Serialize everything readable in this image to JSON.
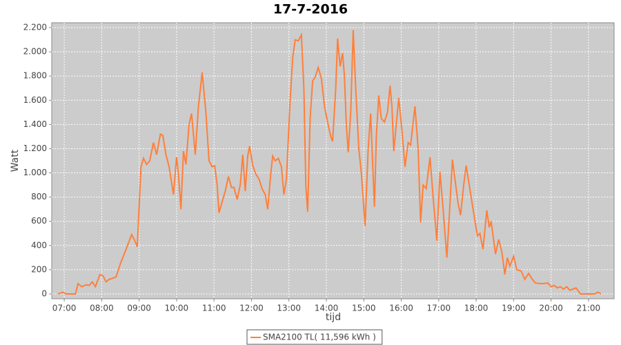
{
  "chart_data": {
    "type": "line",
    "title": "17-7-2016",
    "x_label": "tijd",
    "y_label": "Watt",
    "x": [
      "06:50",
      "06:58",
      "07:03",
      "07:18",
      "07:22",
      "07:28",
      "07:35",
      "07:40",
      "07:45",
      "07:50",
      "07:57",
      "08:02",
      "08:07",
      "08:12",
      "08:18",
      "08:23",
      "08:30",
      "08:40",
      "08:48",
      "08:53",
      "08:57",
      "09:03",
      "09:07",
      "09:12",
      "09:17",
      "09:23",
      "09:28",
      "09:34",
      "09:38",
      "09:43",
      "09:48",
      "09:55",
      "10:00",
      "10:03",
      "10:07",
      "10:11",
      "10:15",
      "10:20",
      "10:24",
      "10:30",
      "10:35",
      "10:41",
      "10:47",
      "10:52",
      "10:57",
      "11:01",
      "11:05",
      "11:08",
      "11:13",
      "11:18",
      "11:23",
      "11:28",
      "11:32",
      "11:37",
      "11:42",
      "11:46",
      "11:50",
      "11:54",
      "11:57",
      "12:02",
      "12:07",
      "12:12",
      "12:17",
      "12:22",
      "12:26",
      "12:31",
      "12:34",
      "12:38",
      "12:43",
      "12:48",
      "12:52",
      "12:56",
      "13:02",
      "13:06",
      "13:10",
      "13:15",
      "13:20",
      "13:24",
      "13:27",
      "13:30",
      "13:34",
      "13:38",
      "13:42",
      "13:47",
      "13:52",
      "13:57",
      "14:02",
      "14:07",
      "14:10",
      "14:15",
      "14:18",
      "14:22",
      "14:26",
      "14:29",
      "14:32",
      "14:35",
      "14:39",
      "14:43",
      "14:47",
      "14:52",
      "14:56",
      "15:02",
      "15:07",
      "15:11",
      "15:14",
      "15:17",
      "15:20",
      "15:24",
      "15:28",
      "15:33",
      "15:38",
      "15:42",
      "15:45",
      "15:48",
      "15:52",
      "15:56",
      "16:01",
      "16:06",
      "16:11",
      "16:15",
      "16:22",
      "16:27",
      "16:31",
      "16:35",
      "16:40",
      "16:46",
      "16:51",
      "16:57",
      "17:02",
      "17:07",
      "17:13",
      "17:17",
      "17:22",
      "17:26",
      "17:31",
      "17:35",
      "17:40",
      "17:44",
      "17:49",
      "17:55",
      "18:02",
      "18:06",
      "18:11",
      "18:17",
      "18:21",
      "18:24",
      "18:31",
      "18:36",
      "18:41",
      "18:46",
      "18:50",
      "18:54",
      "19:00",
      "19:05",
      "19:12",
      "19:18",
      "19:24",
      "19:30",
      "19:35",
      "19:45",
      "19:55",
      "20:00",
      "20:05",
      "20:10",
      "20:15",
      "20:20",
      "20:25",
      "20:30",
      "20:40",
      "20:47",
      "21:10",
      "21:15",
      "21:20"
    ],
    "series": [
      {
        "name": "SMA2100 TL( 11,596 kWh )",
        "color": "#ff7f3a",
        "values": [
          0,
          15,
          0,
          0,
          85,
          60,
          75,
          70,
          100,
          60,
          160,
          150,
          100,
          120,
          130,
          140,
          250,
          380,
          490,
          440,
          390,
          1050,
          1120,
          1070,
          1100,
          1250,
          1150,
          1320,
          1310,
          1150,
          1050,
          820,
          1130,
          990,
          700,
          1180,
          1070,
          1400,
          1490,
          1150,
          1550,
          1830,
          1500,
          1100,
          1050,
          1060,
          900,
          670,
          760,
          850,
          970,
          880,
          880,
          780,
          900,
          1150,
          850,
          1140,
          1220,
          1060,
          990,
          950,
          870,
          820,
          700,
          1000,
          1140,
          1100,
          1120,
          1050,
          820,
          950,
          1600,
          1950,
          2100,
          2090,
          2140,
          1700,
          900,
          680,
          1450,
          1760,
          1790,
          1870,
          1780,
          1550,
          1420,
          1300,
          1260,
          1700,
          2110,
          1880,
          1990,
          1800,
          1400,
          1170,
          1500,
          2180,
          1700,
          1200,
          1000,
          560,
          1200,
          1490,
          1100,
          720,
          1300,
          1640,
          1450,
          1420,
          1500,
          1720,
          1550,
          1180,
          1400,
          1620,
          1350,
          1050,
          1250,
          1230,
          1550,
          1200,
          590,
          900,
          870,
          1130,
          800,
          440,
          1010,
          700,
          300,
          650,
          1110,
          950,
          750,
          650,
          900,
          1060,
          900,
          700,
          480,
          500,
          370,
          690,
          550,
          600,
          330,
          450,
          350,
          160,
          300,
          230,
          310,
          200,
          190,
          120,
          170,
          120,
          90,
          85,
          90,
          60,
          70,
          50,
          60,
          40,
          60,
          30,
          50,
          0,
          0,
          15,
          0
        ]
      }
    ],
    "xlim": [
      "06:40",
      "21:41"
    ],
    "xticks": [
      "07:00",
      "08:00",
      "09:00",
      "10:00",
      "11:00",
      "12:00",
      "13:00",
      "14:00",
      "15:00",
      "16:00",
      "17:00",
      "18:00",
      "19:00",
      "20:00",
      "21:00"
    ],
    "ylim": [
      -40,
      2240
    ],
    "yticks": [
      0,
      200,
      400,
      600,
      800,
      {
        "value": 1000,
        "label": "1.000"
      },
      {
        "value": 1200,
        "label": "1.200"
      },
      {
        "value": 1400,
        "label": "1.400"
      },
      {
        "value": 1600,
        "label": "1.600"
      },
      {
        "value": 1800,
        "label": "1.800"
      },
      {
        "value": 2000,
        "label": "2.000"
      },
      {
        "value": 2200,
        "label": "2.200"
      }
    ],
    "grid": true,
    "legend": "bottom"
  }
}
